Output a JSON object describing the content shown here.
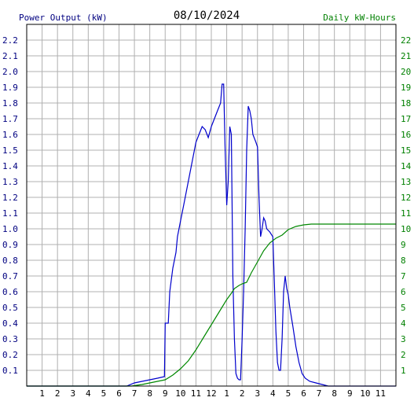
{
  "chart_data": {
    "type": "line",
    "title": "08/10/2024",
    "left_axis_label": "Power Output (kW)",
    "right_axis_label": "Daily kW-Hours",
    "x_tick_labels": [
      "1",
      "2",
      "3",
      "4",
      "5",
      "6",
      "7",
      "8",
      "9",
      "10",
      "11",
      "12",
      "1",
      "2",
      "3",
      "4",
      "5",
      "6",
      "7",
      "8",
      "9",
      "10",
      "11"
    ],
    "x_range_hours": [
      0,
      24
    ],
    "left_ylim": [
      0,
      2.3
    ],
    "left_tick_labels": [
      "0.1",
      "0.2",
      "0.3",
      "0.4",
      "0.5",
      "0.6",
      "0.7",
      "0.8",
      "0.9",
      "1.0",
      "1.1",
      "1.2",
      "1.3",
      "1.4",
      "1.5",
      "1.6",
      "1.7",
      "1.8",
      "1.9",
      "2.0",
      "2.1",
      "2.2"
    ],
    "right_ylim": [
      0,
      23
    ],
    "right_tick_labels": [
      "1",
      "2",
      "3",
      "4",
      "5",
      "6",
      "7",
      "8",
      "9",
      "10",
      "11",
      "12",
      "13",
      "14",
      "15",
      "16",
      "17",
      "18",
      "19",
      "20",
      "21",
      "22"
    ],
    "grid": true,
    "colors": {
      "power": "#0000cc",
      "energy": "#008800",
      "left_axis_text": "#000080",
      "right_axis_text": "#008000",
      "grid": "#b0b0b0"
    },
    "series": [
      {
        "name": "Power Output (kW)",
        "axis": "left",
        "points": [
          [
            0,
            0
          ],
          [
            6.5,
            0
          ],
          [
            7,
            0.02
          ],
          [
            7.5,
            0.03
          ],
          [
            8,
            0.04
          ],
          [
            8.5,
            0.05
          ],
          [
            8.95,
            0.06
          ],
          [
            9.0,
            0.4
          ],
          [
            9.2,
            0.4
          ],
          [
            9.3,
            0.6
          ],
          [
            9.5,
            0.75
          ],
          [
            9.7,
            0.85
          ],
          [
            9.8,
            0.95
          ],
          [
            10.0,
            1.05
          ],
          [
            10.2,
            1.15
          ],
          [
            10.4,
            1.25
          ],
          [
            10.6,
            1.35
          ],
          [
            10.8,
            1.45
          ],
          [
            11.0,
            1.55
          ],
          [
            11.2,
            1.6
          ],
          [
            11.4,
            1.65
          ],
          [
            11.6,
            1.63
          ],
          [
            11.8,
            1.58
          ],
          [
            12.0,
            1.65
          ],
          [
            12.2,
            1.7
          ],
          [
            12.4,
            1.75
          ],
          [
            12.6,
            1.8
          ],
          [
            12.7,
            1.92
          ],
          [
            12.8,
            1.92
          ],
          [
            12.9,
            1.5
          ],
          [
            13.0,
            1.15
          ],
          [
            13.1,
            1.3
          ],
          [
            13.2,
            1.65
          ],
          [
            13.3,
            1.6
          ],
          [
            13.4,
            0.7
          ],
          [
            13.5,
            0.3
          ],
          [
            13.6,
            0.08
          ],
          [
            13.7,
            0.05
          ],
          [
            13.8,
            0.04
          ],
          [
            13.9,
            0.04
          ],
          [
            14.0,
            0.3
          ],
          [
            14.1,
            0.6
          ],
          [
            14.2,
            1.0
          ],
          [
            14.3,
            1.5
          ],
          [
            14.4,
            1.78
          ],
          [
            14.5,
            1.75
          ],
          [
            14.6,
            1.7
          ],
          [
            14.7,
            1.6
          ],
          [
            14.9,
            1.55
          ],
          [
            15.0,
            1.52
          ],
          [
            15.1,
            1.2
          ],
          [
            15.2,
            0.95
          ],
          [
            15.3,
            1.0
          ],
          [
            15.4,
            1.07
          ],
          [
            15.5,
            1.05
          ],
          [
            15.6,
            1.0
          ],
          [
            15.8,
            0.98
          ],
          [
            16.0,
            0.95
          ],
          [
            16.1,
            0.65
          ],
          [
            16.2,
            0.35
          ],
          [
            16.3,
            0.15
          ],
          [
            16.4,
            0.1
          ],
          [
            16.5,
            0.1
          ],
          [
            16.6,
            0.3
          ],
          [
            16.7,
            0.6
          ],
          [
            16.8,
            0.7
          ],
          [
            16.9,
            0.62
          ],
          [
            17.0,
            0.58
          ],
          [
            17.1,
            0.5
          ],
          [
            17.3,
            0.38
          ],
          [
            17.5,
            0.25
          ],
          [
            17.7,
            0.15
          ],
          [
            17.9,
            0.08
          ],
          [
            18.1,
            0.05
          ],
          [
            18.4,
            0.03
          ],
          [
            18.8,
            0.02
          ],
          [
            19.2,
            0.01
          ],
          [
            19.6,
            0
          ],
          [
            24,
            0
          ]
        ]
      },
      {
        "name": "Daily kW-Hours",
        "axis": "right",
        "points": [
          [
            0,
            0
          ],
          [
            6.8,
            0
          ],
          [
            7.5,
            0.1
          ],
          [
            8.0,
            0.2
          ],
          [
            8.5,
            0.3
          ],
          [
            9.0,
            0.4
          ],
          [
            9.5,
            0.7
          ],
          [
            10.0,
            1.1
          ],
          [
            10.5,
            1.6
          ],
          [
            11.0,
            2.3
          ],
          [
            11.5,
            3.1
          ],
          [
            12.0,
            3.9
          ],
          [
            12.5,
            4.7
          ],
          [
            13.0,
            5.5
          ],
          [
            13.3,
            5.9
          ],
          [
            13.5,
            6.2
          ],
          [
            13.8,
            6.4
          ],
          [
            14.0,
            6.5
          ],
          [
            14.3,
            6.6
          ],
          [
            14.6,
            7.2
          ],
          [
            15.0,
            7.9
          ],
          [
            15.4,
            8.6
          ],
          [
            15.8,
            9.1
          ],
          [
            16.2,
            9.4
          ],
          [
            16.6,
            9.6
          ],
          [
            17.0,
            9.95
          ],
          [
            17.5,
            10.15
          ],
          [
            18.0,
            10.25
          ],
          [
            18.5,
            10.3
          ],
          [
            19.0,
            10.3
          ],
          [
            24,
            10.3
          ]
        ]
      }
    ]
  }
}
